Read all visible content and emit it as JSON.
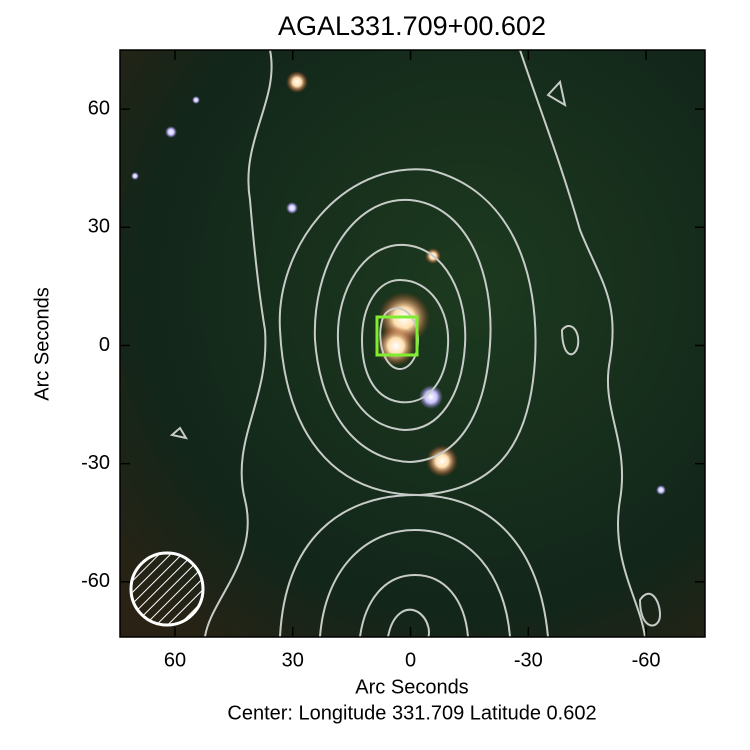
{
  "chart_data": {
    "type": "image",
    "title": "AGAL331.709+00.602",
    "xlabel": "Arc Seconds",
    "ylabel": "Arc Seconds",
    "caption": "Center:  Longitude 331.709 Latitude 0.602",
    "xlim": [
      74,
      -75
    ],
    "ylim": [
      -74,
      75
    ],
    "xticks": [
      60,
      30,
      0,
      -30,
      -60
    ],
    "yticks": [
      -60,
      -30,
      0,
      30,
      60
    ]
  }
}
